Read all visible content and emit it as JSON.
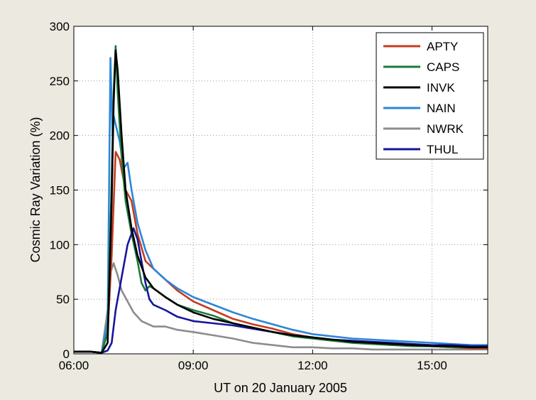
{
  "chart_data": {
    "type": "line",
    "xlabel": "UT on 20 January 2005",
    "ylabel": "Cosmic Ray Variation (%)",
    "xlim": [
      6.0,
      16.4
    ],
    "ylim": [
      0,
      300
    ],
    "xticks": [
      6,
      9,
      12,
      15
    ],
    "xtick_labels": [
      "06:00",
      "09:00",
      "12:00",
      "15:00"
    ],
    "yticks": [
      0,
      50,
      100,
      150,
      200,
      250,
      300
    ],
    "ytick_labels": [
      "0",
      "50",
      "100",
      "150",
      "200",
      "250",
      "300"
    ],
    "grid": true,
    "legend_position": "top-right",
    "series": [
      {
        "name": "APTY",
        "color": "#c43c1e",
        "x": [
          6.0,
          6.4,
          6.7,
          6.85,
          6.95,
          7.05,
          7.15,
          7.3,
          7.45,
          7.6,
          7.8,
          8.0,
          8.3,
          8.6,
          9.0,
          9.5,
          10.0,
          10.5,
          11.0,
          11.5,
          12.0,
          12.5,
          13.0,
          13.5,
          14.0,
          14.5,
          15.0,
          15.5,
          16.0,
          16.4
        ],
        "y": [
          2,
          2,
          1,
          20,
          90,
          185,
          178,
          150,
          140,
          110,
          85,
          78,
          68,
          58,
          48,
          40,
          32,
          27,
          23,
          18,
          15,
          13,
          11,
          10,
          8,
          8,
          7,
          6,
          5,
          5
        ]
      },
      {
        "name": "CAPS",
        "color": "#1e7a3c",
        "x": [
          6.0,
          6.4,
          6.7,
          6.85,
          6.95,
          7.0,
          7.05,
          7.1,
          7.2,
          7.3,
          7.45,
          7.6,
          7.7,
          7.8,
          7.9,
          8.0,
          8.3,
          8.6,
          9.0,
          9.5,
          10.0,
          10.5,
          11.0,
          11.5,
          12.0,
          12.5,
          13.0,
          13.5,
          14.0,
          14.5,
          15.0,
          15.5,
          16.0,
          16.4
        ],
        "y": [
          2,
          2,
          1,
          20,
          160,
          240,
          282,
          240,
          180,
          140,
          110,
          85,
          65,
          58,
          62,
          60,
          52,
          45,
          40,
          35,
          28,
          24,
          20,
          16,
          14,
          12,
          10,
          9,
          8,
          7,
          7,
          6,
          6,
          6
        ]
      },
      {
        "name": "INVK",
        "color": "#000000",
        "x": [
          6.0,
          6.4,
          6.7,
          6.85,
          6.95,
          7.0,
          7.05,
          7.1,
          7.2,
          7.3,
          7.45,
          7.6,
          7.8,
          8.0,
          8.3,
          8.6,
          9.0,
          9.5,
          10.0,
          10.5,
          11.0,
          11.5,
          12.0,
          12.5,
          13.0,
          13.5,
          14.0,
          14.5,
          15.0,
          15.5,
          16.0,
          16.4
        ],
        "y": [
          2,
          2,
          1,
          10,
          140,
          230,
          278,
          260,
          200,
          150,
          115,
          90,
          70,
          60,
          52,
          45,
          38,
          32,
          28,
          24,
          20,
          17,
          15,
          13,
          11,
          10,
          9,
          8,
          7,
          7,
          6,
          6
        ]
      },
      {
        "name": "NAIN",
        "color": "#2e86d6",
        "x": [
          6.0,
          6.4,
          6.7,
          6.85,
          6.92,
          6.97,
          7.0,
          7.05,
          7.15,
          7.25,
          7.35,
          7.45,
          7.6,
          7.8,
          8.0,
          8.3,
          8.6,
          9.0,
          9.5,
          10.0,
          10.5,
          11.0,
          11.5,
          12.0,
          12.5,
          13.0,
          13.5,
          14.0,
          14.5,
          15.0,
          15.5,
          16.0,
          16.4
        ],
        "y": [
          2,
          2,
          1,
          30,
          271,
          200,
          218,
          210,
          195,
          170,
          175,
          150,
          120,
          95,
          78,
          68,
          60,
          52,
          45,
          38,
          32,
          27,
          22,
          18,
          16,
          14,
          13,
          12,
          11,
          10,
          9,
          8,
          8
        ]
      },
      {
        "name": "NWRK",
        "color": "#8c8c8c",
        "x": [
          6.0,
          6.4,
          6.7,
          6.85,
          6.92,
          7.0,
          7.1,
          7.2,
          7.35,
          7.5,
          7.7,
          8.0,
          8.3,
          8.6,
          9.0,
          9.5,
          10.0,
          10.5,
          11.0,
          11.5,
          12.0,
          12.5,
          13.0,
          13.5,
          14.0,
          14.5,
          15.0,
          15.5,
          16.0,
          16.4
        ],
        "y": [
          2,
          2,
          1,
          40,
          75,
          83,
          72,
          58,
          48,
          38,
          30,
          25,
          25,
          22,
          20,
          17,
          14,
          10,
          8,
          6,
          6,
          5,
          5,
          4,
          4,
          4,
          4,
          4,
          4,
          4
        ]
      },
      {
        "name": "THUL",
        "color": "#16169a",
        "x": [
          6.0,
          6.4,
          6.7,
          6.85,
          6.95,
          7.05,
          7.2,
          7.35,
          7.5,
          7.6,
          7.7,
          7.8,
          7.9,
          8.0,
          8.3,
          8.6,
          9.0,
          9.5,
          10.0,
          10.5,
          11.0,
          11.5,
          12.0,
          12.5,
          13.0,
          13.5,
          14.0,
          14.5,
          15.0,
          15.5,
          16.0,
          16.4
        ],
        "y": [
          2,
          2,
          1,
          3,
          10,
          40,
          70,
          100,
          115,
          105,
          85,
          65,
          50,
          45,
          40,
          34,
          30,
          28,
          26,
          23,
          20,
          17,
          15,
          13,
          12,
          11,
          10,
          9,
          8,
          8,
          7,
          7
        ]
      }
    ]
  }
}
